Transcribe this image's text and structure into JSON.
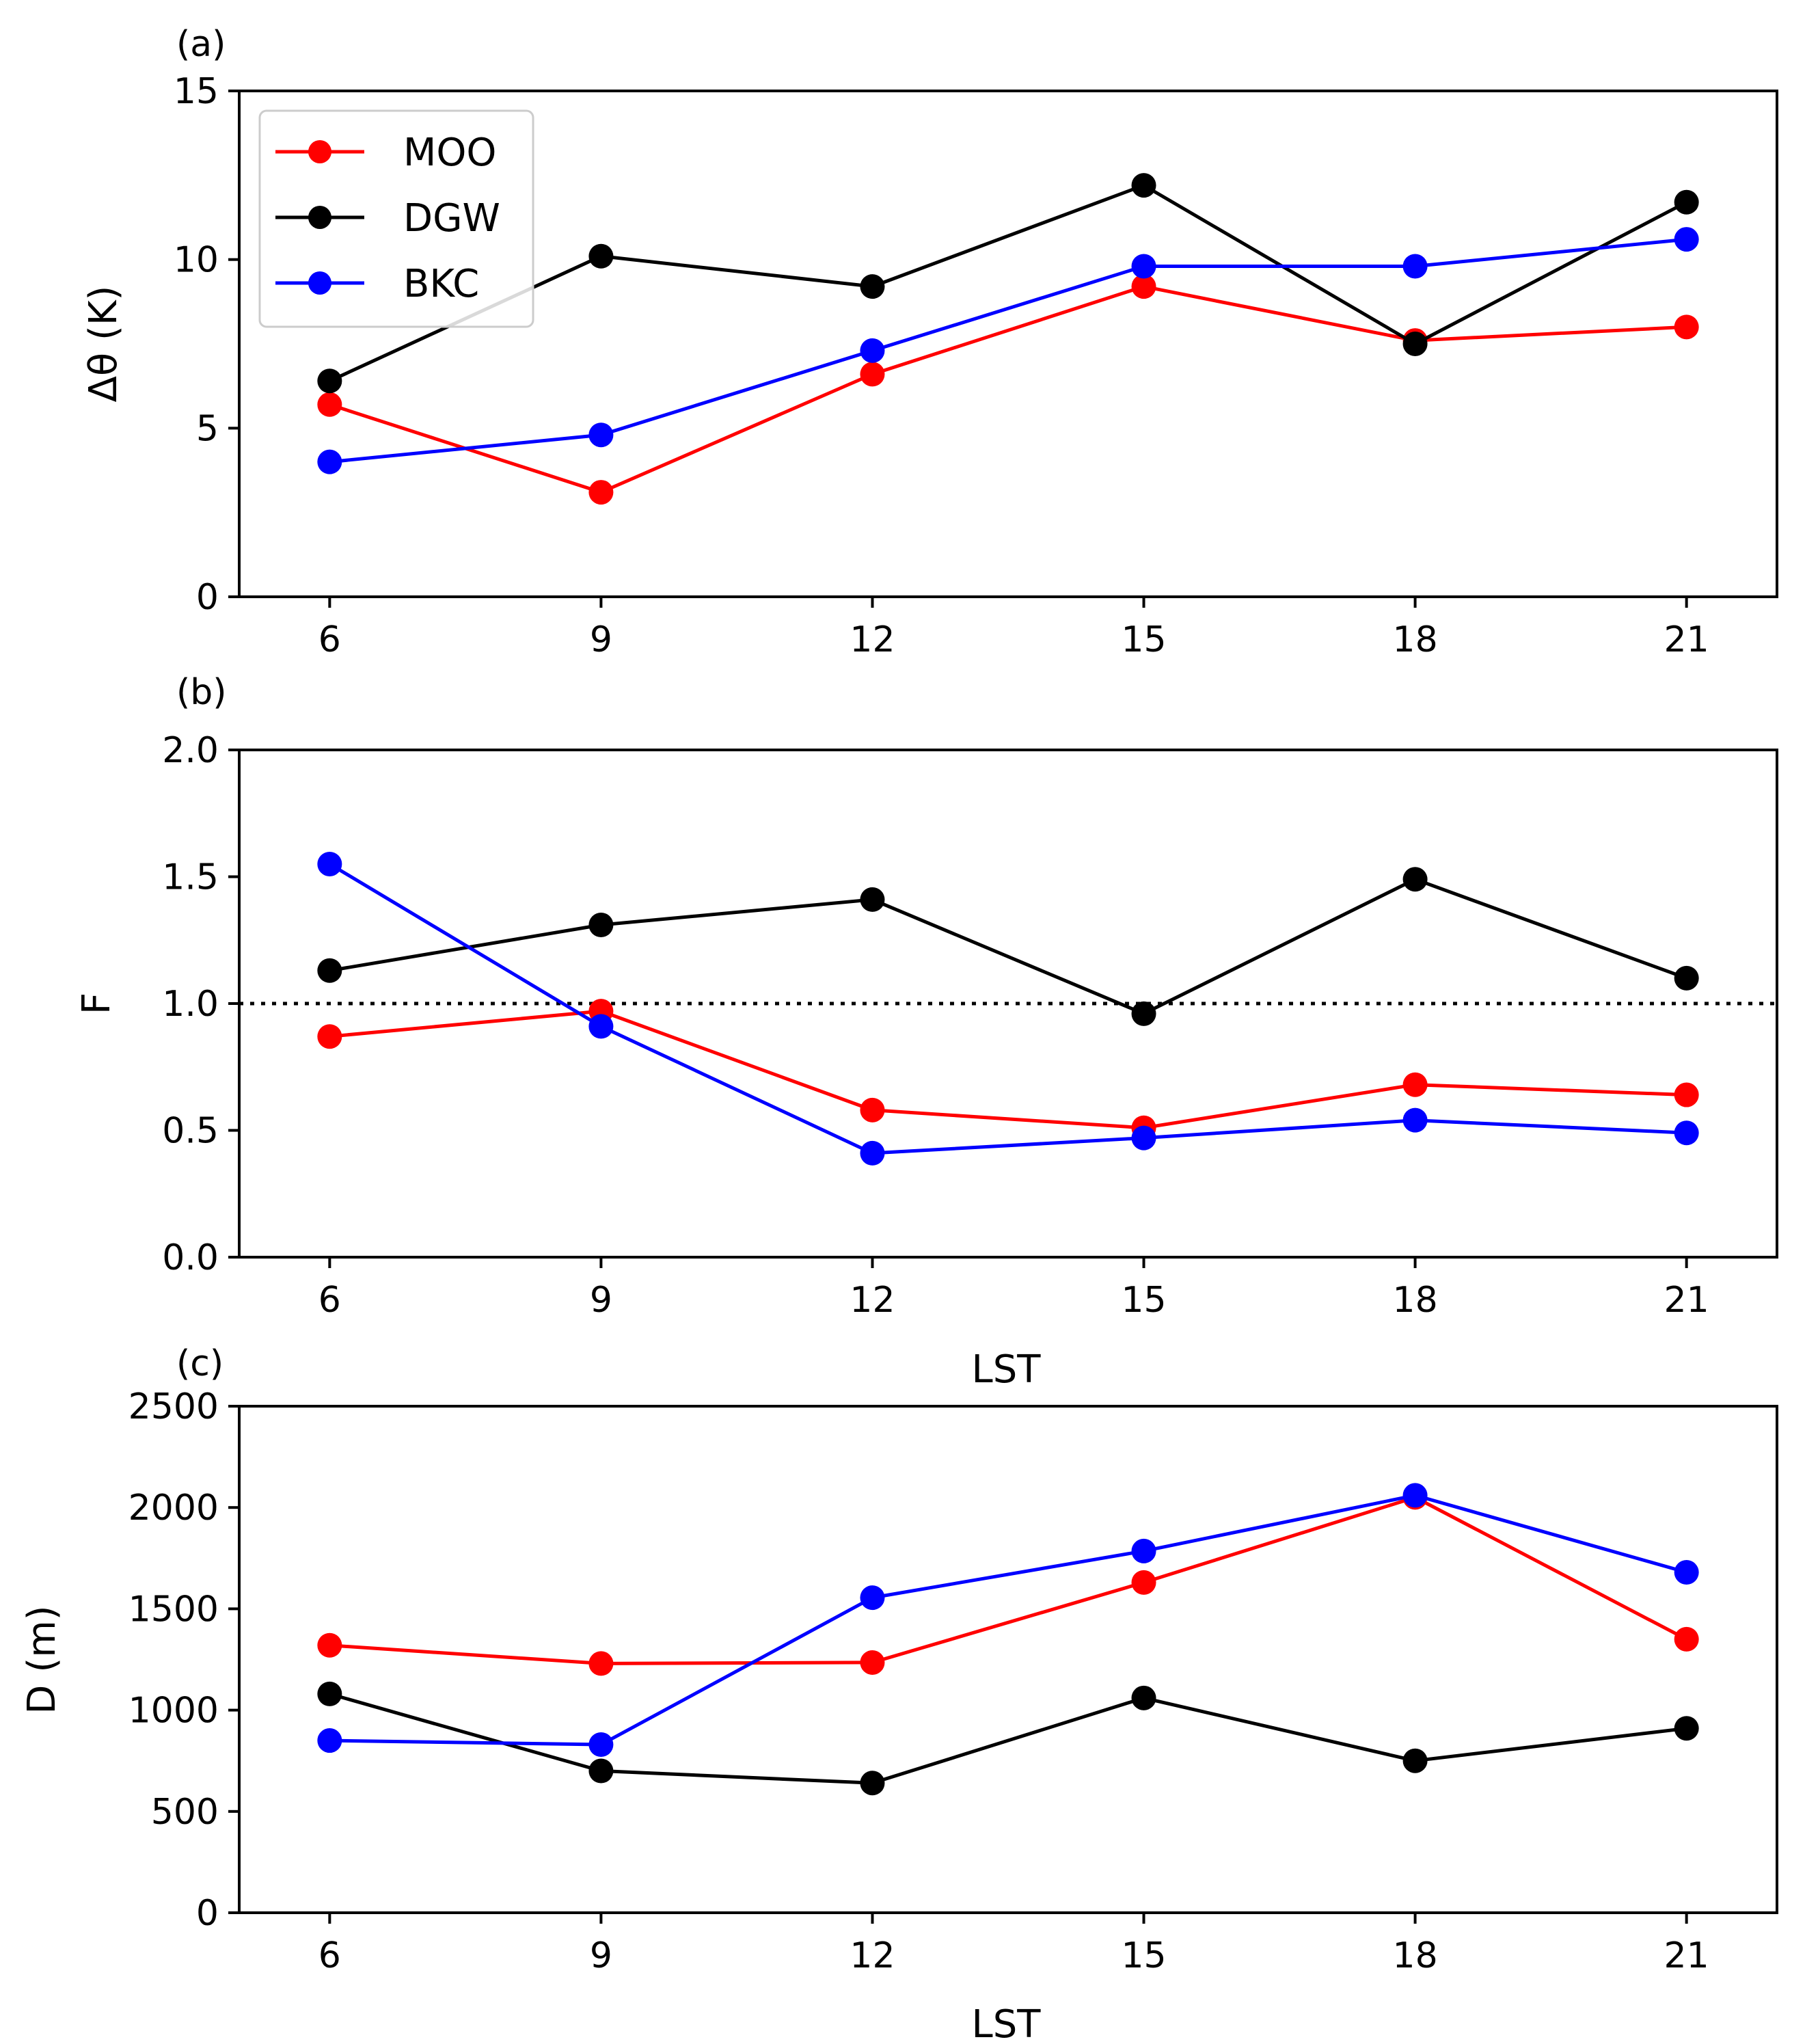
{
  "chart_data": [
    {
      "type": "line",
      "panel_label": "(a)",
      "xlabel": "",
      "ylabel": "Δθ (K)",
      "x": [
        6,
        9,
        12,
        15,
        18,
        21
      ],
      "xticks": [
        "6",
        "9",
        "12",
        "15",
        "18",
        "21"
      ],
      "xlim": [
        5,
        22
      ],
      "ylim": [
        0,
        15
      ],
      "yticks": [
        "0",
        "5",
        "10",
        "15"
      ],
      "grid": false,
      "legend": {
        "placement": "upper-left",
        "entries": [
          "MOO",
          "DGW",
          "BKC"
        ]
      },
      "series": [
        {
          "name": "MOO",
          "color": "#ff0000",
          "values": [
            5.7,
            3.1,
            6.6,
            9.2,
            7.6,
            8.0
          ]
        },
        {
          "name": "DGW",
          "color": "#000000",
          "values": [
            6.4,
            10.1,
            9.2,
            12.2,
            7.5,
            11.7
          ]
        },
        {
          "name": "BKC",
          "color": "#0000ff",
          "values": [
            4.0,
            4.8,
            7.3,
            9.8,
            9.8,
            10.6
          ]
        }
      ]
    },
    {
      "type": "line",
      "panel_label": "(b)",
      "xlabel": "LST",
      "ylabel": "F",
      "x": [
        6,
        9,
        12,
        15,
        18,
        21
      ],
      "xticks": [
        "6",
        "9",
        "12",
        "15",
        "18",
        "21"
      ],
      "xlim": [
        5,
        22
      ],
      "ylim": [
        0,
        2
      ],
      "yticks": [
        "0.0",
        "0.5",
        "1.0",
        "1.5",
        "2.0"
      ],
      "reference_line": {
        "y": 1.0,
        "style": "dotted",
        "color": "#000000"
      },
      "grid": false,
      "series": [
        {
          "name": "MOO",
          "color": "#ff0000",
          "values": [
            0.87,
            0.97,
            0.58,
            0.51,
            0.68,
            0.64
          ]
        },
        {
          "name": "DGW",
          "color": "#000000",
          "values": [
            1.13,
            1.31,
            1.41,
            0.96,
            1.49,
            1.1
          ]
        },
        {
          "name": "BKC",
          "color": "#0000ff",
          "values": [
            1.55,
            0.91,
            0.41,
            0.47,
            0.54,
            0.49
          ]
        }
      ]
    },
    {
      "type": "line",
      "panel_label": "(c)",
      "xlabel": "LST",
      "ylabel": "D (m)",
      "x": [
        6,
        9,
        12,
        15,
        18,
        21
      ],
      "xticks": [
        "6",
        "9",
        "12",
        "15",
        "18",
        "21"
      ],
      "xlim": [
        5,
        22
      ],
      "ylim": [
        0,
        2500
      ],
      "yticks": [
        "0",
        "500",
        "1000",
        "1500",
        "2000",
        "2500"
      ],
      "grid": false,
      "series": [
        {
          "name": "MOO",
          "color": "#ff0000",
          "values": [
            1320,
            1230,
            1235,
            1630,
            2050,
            1350
          ]
        },
        {
          "name": "DGW",
          "color": "#000000",
          "values": [
            1080,
            700,
            640,
            1060,
            750,
            910
          ]
        },
        {
          "name": "BKC",
          "color": "#0000ff",
          "values": [
            850,
            830,
            1555,
            1785,
            2060,
            1680
          ]
        }
      ]
    }
  ]
}
